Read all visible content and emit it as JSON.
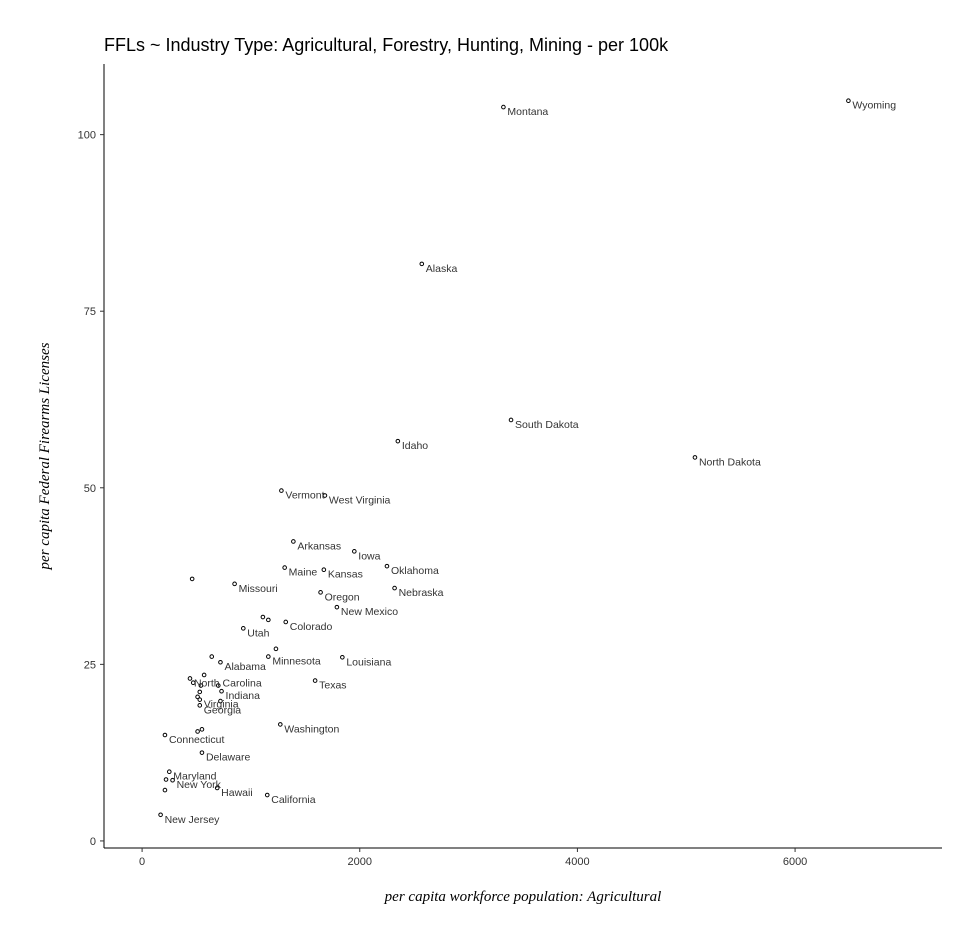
{
  "chart_data": {
    "type": "scatter",
    "title": "FFLs ~ Industry Type: Agricultural, Forestry, Hunting, Mining - per 100k",
    "xlabel": "per capita workforce population: Agricultural",
    "ylabel": "per capita Federal Firearms Licenses",
    "xlim": [
      -350,
      7350
    ],
    "ylim": [
      -1,
      110
    ],
    "xticks": [
      0,
      2000,
      4000,
      6000
    ],
    "yticks": [
      0,
      25,
      50,
      75,
      100
    ],
    "grid": false,
    "points": [
      {
        "label": "Wyoming",
        "x": 6490,
        "y": 104.8
      },
      {
        "label": "Montana",
        "x": 3320,
        "y": 103.9
      },
      {
        "label": "Alaska",
        "x": 2570,
        "y": 81.7
      },
      {
        "label": "South Dakota",
        "x": 3390,
        "y": 59.6
      },
      {
        "label": "Idaho",
        "x": 2350,
        "y": 56.6
      },
      {
        "label": "North Dakota",
        "x": 5080,
        "y": 54.3
      },
      {
        "label": "Vermont",
        "x": 1280,
        "y": 49.6
      },
      {
        "label": "West Virginia",
        "x": 1680,
        "y": 48.9
      },
      {
        "label": "Arkansas",
        "x": 1390,
        "y": 42.4
      },
      {
        "label": "Iowa",
        "x": 1950,
        "y": 41.0
      },
      {
        "label": "Oklahoma",
        "x": 2250,
        "y": 38.9
      },
      {
        "label": "Maine",
        "x": 1310,
        "y": 38.7
      },
      {
        "label": "Kansas",
        "x": 1670,
        "y": 38.4
      },
      {
        "label": "",
        "x": 460,
        "y": 37.1
      },
      {
        "label": "Missouri",
        "x": 850,
        "y": 36.4
      },
      {
        "label": "Nebraska",
        "x": 2320,
        "y": 35.8
      },
      {
        "label": "Oregon",
        "x": 1640,
        "y": 35.2
      },
      {
        "label": "New Mexico",
        "x": 1790,
        "y": 33.1
      },
      {
        "label": "",
        "x": 1110,
        "y": 31.7
      },
      {
        "label": "",
        "x": 1160,
        "y": 31.3
      },
      {
        "label": "Colorado",
        "x": 1320,
        "y": 31.0
      },
      {
        "label": "Utah",
        "x": 930,
        "y": 30.1
      },
      {
        "label": "",
        "x": 1230,
        "y": 27.2
      },
      {
        "label": "Minnesota",
        "x": 1160,
        "y": 26.1
      },
      {
        "label": "Louisiana",
        "x": 1840,
        "y": 26.0
      },
      {
        "label": "",
        "x": 640,
        "y": 26.1
      },
      {
        "label": "Alabama",
        "x": 720,
        "y": 25.3
      },
      {
        "label": "",
        "x": 570,
        "y": 23.5
      },
      {
        "label": "North Carolina",
        "x": 440,
        "y": 23.0
      },
      {
        "label": "",
        "x": 470,
        "y": 22.4
      },
      {
        "label": "",
        "x": 540,
        "y": 22.0
      },
      {
        "label": "Texas",
        "x": 1590,
        "y": 22.7
      },
      {
        "label": "",
        "x": 700,
        "y": 22.0
      },
      {
        "label": "Indiana",
        "x": 730,
        "y": 21.2
      },
      {
        "label": "",
        "x": 530,
        "y": 21.1
      },
      {
        "label": "",
        "x": 510,
        "y": 20.4
      },
      {
        "label": "Virginia",
        "x": 530,
        "y": 20.0
      },
      {
        "label": "",
        "x": 720,
        "y": 19.8
      },
      {
        "label": "Georgia",
        "x": 530,
        "y": 19.2
      },
      {
        "label": "Washington",
        "x": 1270,
        "y": 16.5
      },
      {
        "label": "",
        "x": 550,
        "y": 15.8
      },
      {
        "label": "",
        "x": 510,
        "y": 15.5
      },
      {
        "label": "Connecticut",
        "x": 210,
        "y": 15.0
      },
      {
        "label": "Delaware",
        "x": 550,
        "y": 12.5
      },
      {
        "label": "Maryland",
        "x": 250,
        "y": 9.8
      },
      {
        "label": "",
        "x": 220,
        "y": 8.7
      },
      {
        "label": "New York",
        "x": 280,
        "y": 8.6
      },
      {
        "label": "Hawaii",
        "x": 690,
        "y": 7.5
      },
      {
        "label": "",
        "x": 210,
        "y": 7.2
      },
      {
        "label": "California",
        "x": 1150,
        "y": 6.5
      },
      {
        "label": "New Jersey",
        "x": 170,
        "y": 3.7
      }
    ]
  }
}
